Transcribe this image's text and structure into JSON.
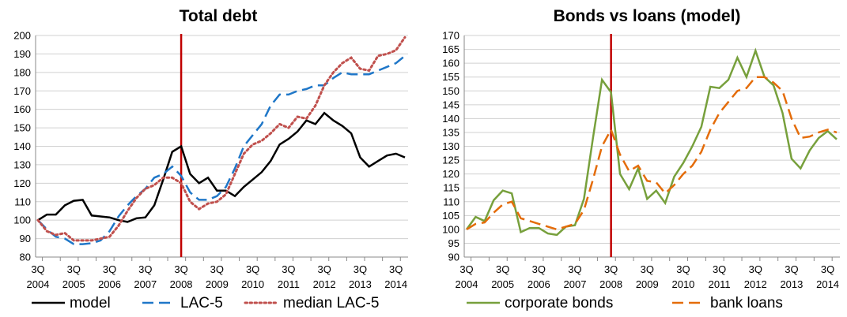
{
  "chart_data": [
    {
      "type": "line",
      "title": "Total debt",
      "categories": [
        "3Q 2004",
        null,
        null,
        null,
        "3Q 2005",
        null,
        null,
        null,
        "3Q 2006",
        null,
        null,
        null,
        "3Q 2007",
        null,
        null,
        null,
        "3Q 2008",
        null,
        null,
        null,
        "3Q 2009",
        null,
        null,
        null,
        "3Q 2010",
        null,
        null,
        null,
        "3Q 2011",
        null,
        null,
        null,
        "3Q 2012",
        null,
        null,
        null,
        "3Q 2013",
        null,
        null,
        null,
        "3Q 2014",
        null
      ],
      "ylim": [
        80,
        200
      ],
      "yticks": [
        80,
        90,
        100,
        110,
        120,
        130,
        140,
        150,
        160,
        170,
        180,
        190,
        200
      ],
      "grid": true,
      "vline_at": "3Q 2008",
      "vline_color": "#c00000",
      "series": [
        {
          "name": "model",
          "color": "#000000",
          "style": "solid",
          "values": [
            100,
            103,
            103,
            108,
            110.5,
            111,
            102.5,
            102,
            101.5,
            100,
            99,
            101,
            101.5,
            108,
            122,
            137,
            140,
            125,
            120,
            123,
            116,
            116,
            113,
            118,
            122,
            126,
            132,
            141,
            144,
            148,
            154,
            152,
            158,
            154,
            151,
            147,
            134,
            129,
            132,
            135,
            136,
            134
          ]
        },
        {
          "name": "LAC-5",
          "color": "#1f77c8",
          "style": "dashed",
          "values": [
            100,
            95,
            91,
            90,
            87,
            87,
            87.5,
            89,
            94,
            102,
            108,
            113,
            117,
            123,
            125,
            129,
            124,
            115,
            111,
            111,
            113,
            118,
            128,
            140,
            146,
            152,
            162,
            168,
            168,
            170,
            171,
            173,
            173,
            177,
            180,
            179,
            179,
            179,
            181,
            183,
            185,
            189
          ]
        },
        {
          "name": "median LAC-5",
          "color": "#c0504d",
          "style": "dotted",
          "values": [
            100,
            94,
            92,
            93,
            89,
            89,
            89,
            90,
            91,
            97,
            105,
            112,
            117,
            119,
            123,
            123,
            120,
            110,
            106,
            109,
            110,
            114,
            125,
            136,
            141,
            143,
            147,
            152,
            150,
            156,
            155,
            162,
            173,
            180,
            185,
            188,
            182,
            181,
            189,
            190,
            192,
            199
          ]
        }
      ]
    },
    {
      "type": "line",
      "title": "Bonds vs loans (model)",
      "categories": [
        "3Q 2004",
        null,
        null,
        null,
        "3Q 2005",
        null,
        null,
        null,
        "3Q 2006",
        null,
        null,
        null,
        "3Q 2007",
        null,
        null,
        null,
        "3Q 2008",
        null,
        null,
        null,
        "3Q 2009",
        null,
        null,
        null,
        "3Q 2010",
        null,
        null,
        null,
        "3Q 2011",
        null,
        null,
        null,
        "3Q 2012",
        null,
        null,
        null,
        "3Q 2013",
        null,
        null,
        null,
        "3Q 2014",
        null
      ],
      "ylim": [
        90,
        170
      ],
      "yticks": [
        90,
        95,
        100,
        105,
        110,
        115,
        120,
        125,
        130,
        135,
        140,
        145,
        150,
        155,
        160,
        165,
        170
      ],
      "grid": true,
      "vline_at": "3Q 2008",
      "vline_color": "#c00000",
      "series": [
        {
          "name": "corporate bonds",
          "color": "#77a03c",
          "style": "solid",
          "values": [
            100,
            104.5,
            103,
            110.5,
            114,
            113,
            99,
            100.5,
            100.5,
            98.5,
            98,
            101,
            101.5,
            111,
            133,
            154,
            149.5,
            120,
            114.5,
            122,
            111,
            114,
            109.5,
            119,
            124,
            130,
            137,
            151.5,
            151,
            154,
            162,
            155,
            164.5,
            155,
            152,
            142,
            125.5,
            122,
            128.5,
            133,
            135.5,
            132.5
          ]
        },
        {
          "name": "bank loans",
          "color": "#e46c0a",
          "style": "dashed",
          "values": [
            100,
            102,
            102.5,
            106,
            109,
            110,
            104,
            103,
            102,
            101,
            100,
            101,
            102,
            107,
            118,
            130,
            136,
            127,
            121,
            123,
            117.5,
            117,
            113,
            116,
            120,
            123,
            128,
            136,
            142,
            146,
            150,
            151,
            155,
            155,
            153,
            150,
            140,
            133,
            133.5,
            135,
            136,
            135
          ]
        }
      ]
    }
  ]
}
